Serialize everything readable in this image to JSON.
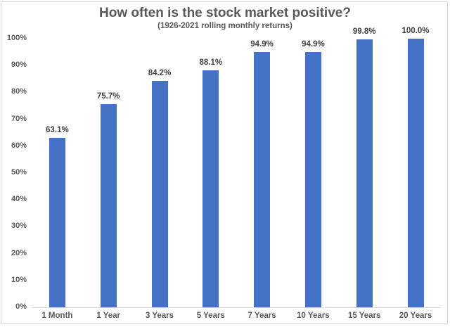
{
  "chart_data": {
    "type": "bar",
    "title": "How often is the stock market positive?",
    "subtitle": "(1926-2021 rolling monthly returns)",
    "xlabel": "",
    "ylabel": "",
    "categories": [
      "1 Month",
      "1 Year",
      "3 Years",
      "5 Years",
      "7 Years",
      "10 Years",
      "15 Years",
      "20 Years"
    ],
    "values": [
      63.1,
      75.7,
      84.2,
      88.1,
      94.9,
      94.9,
      99.8,
      100.0
    ],
    "value_labels": [
      "63.1%",
      "75.7%",
      "84.2%",
      "88.1%",
      "94.9%",
      "94.9%",
      "99.8%",
      "100.0%"
    ],
    "ylim": [
      0,
      100
    ],
    "yticks": [
      "0%",
      "10%",
      "20%",
      "30%",
      "40%",
      "50%",
      "60%",
      "70%",
      "80%",
      "90%",
      "100%"
    ],
    "grid": false,
    "legend": null,
    "bar_color": "#4472C4"
  }
}
